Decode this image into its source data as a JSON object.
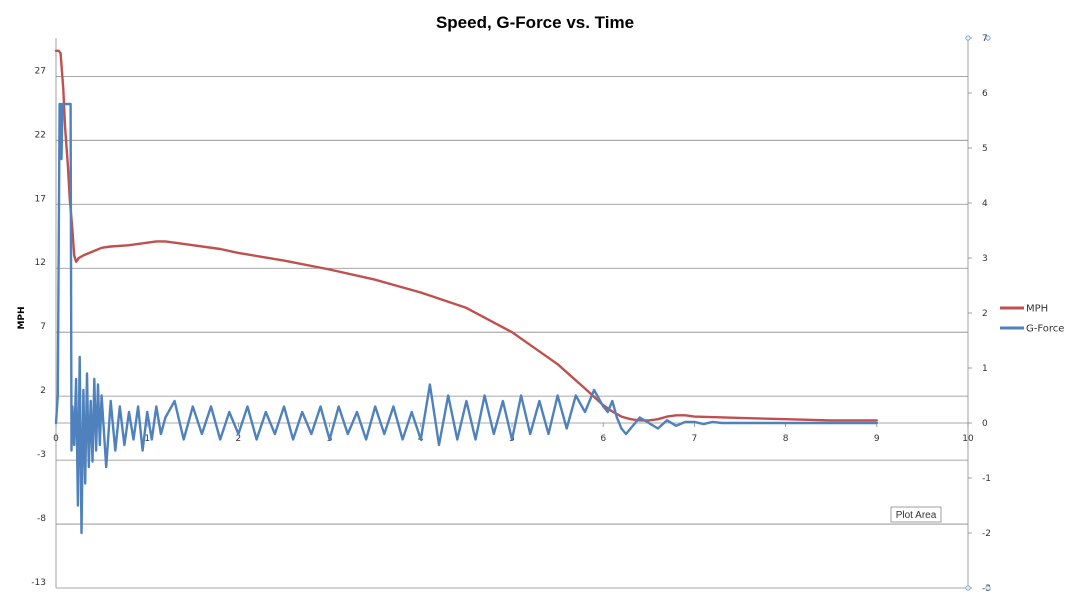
{
  "chart_data": {
    "type": "line",
    "title": "Speed, G-Force vs. Time",
    "xlabel": "",
    "ylabel": "MPH",
    "y2label": "",
    "xlim": [
      0,
      10
    ],
    "ylim": [
      -13,
      30
    ],
    "y2lim": [
      -3,
      7
    ],
    "x_ticks": [
      "0",
      "1",
      "2",
      "3",
      "4",
      "5",
      "6",
      "7",
      "8",
      "9",
      "10"
    ],
    "y_ticks": [
      "-13",
      "-8",
      "-3",
      "2",
      "7",
      "12",
      "17",
      "22",
      "27"
    ],
    "y2_ticks": [
      "-3",
      "-2",
      "-1",
      "0",
      "1",
      "2",
      "3",
      "4",
      "5",
      "6",
      "7"
    ],
    "grid": true,
    "legend_position": "right",
    "series": [
      {
        "name": "MPH",
        "color": "#c0504d",
        "axis": "left",
        "x": [
          0.0,
          0.03,
          0.05,
          0.08,
          0.1,
          0.13,
          0.15,
          0.18,
          0.2,
          0.22,
          0.25,
          0.3,
          0.4,
          0.5,
          0.6,
          0.8,
          1.0,
          1.1,
          1.2,
          1.3,
          1.5,
          1.8,
          2.0,
          2.5,
          3.0,
          3.5,
          4.0,
          4.5,
          5.0,
          5.5,
          5.8,
          6.0,
          6.1,
          6.2,
          6.3,
          6.4,
          6.5,
          6.6,
          6.7,
          6.8,
          6.9,
          7.0,
          7.5,
          8.0,
          8.5,
          9.0
        ],
        "y": [
          29.0,
          29.0,
          28.8,
          26.0,
          23.0,
          20.0,
          17.5,
          15.0,
          13.0,
          12.5,
          12.8,
          13.0,
          13.3,
          13.6,
          13.7,
          13.8,
          14.0,
          14.1,
          14.1,
          14.0,
          13.8,
          13.5,
          13.2,
          12.6,
          11.9,
          11.1,
          10.1,
          8.9,
          7.0,
          4.5,
          2.6,
          1.3,
          0.8,
          0.4,
          0.2,
          0.1,
          0.1,
          0.2,
          0.4,
          0.5,
          0.5,
          0.4,
          0.3,
          0.2,
          0.1,
          0.1
        ]
      },
      {
        "name": "G-Force",
        "color": "#4f81bd",
        "axis": "right",
        "x": [
          0.0,
          0.02,
          0.04,
          0.05,
          0.06,
          0.07,
          0.08,
          0.1,
          0.12,
          0.14,
          0.15,
          0.16,
          0.17,
          0.18,
          0.2,
          0.22,
          0.24,
          0.26,
          0.28,
          0.3,
          0.32,
          0.34,
          0.36,
          0.38,
          0.4,
          0.42,
          0.44,
          0.46,
          0.48,
          0.5,
          0.55,
          0.6,
          0.65,
          0.7,
          0.75,
          0.8,
          0.85,
          0.9,
          0.95,
          1.0,
          1.05,
          1.1,
          1.15,
          1.2,
          1.3,
          1.4,
          1.5,
          1.6,
          1.7,
          1.8,
          1.9,
          2.0,
          2.1,
          2.2,
          2.3,
          2.4,
          2.5,
          2.6,
          2.7,
          2.8,
          2.9,
          3.0,
          3.1,
          3.2,
          3.3,
          3.4,
          3.5,
          3.6,
          3.7,
          3.8,
          3.9,
          4.0,
          4.1,
          4.2,
          4.3,
          4.4,
          4.5,
          4.6,
          4.7,
          4.8,
          4.9,
          5.0,
          5.1,
          5.2,
          5.3,
          5.4,
          5.5,
          5.6,
          5.7,
          5.8,
          5.9,
          6.0,
          6.05,
          6.1,
          6.15,
          6.2,
          6.25,
          6.3,
          6.4,
          6.5,
          6.6,
          6.7,
          6.8,
          6.9,
          7.0,
          7.1,
          7.2,
          7.3,
          7.5,
          7.7,
          8.0,
          8.5,
          9.0
        ],
        "y": [
          0.0,
          0.5,
          5.8,
          5.8,
          4.8,
          5.8,
          5.8,
          5.8,
          5.8,
          5.8,
          5.8,
          5.8,
          -0.5,
          0.3,
          -0.4,
          0.8,
          -1.5,
          1.2,
          -2.0,
          0.6,
          -1.1,
          0.9,
          -0.8,
          0.4,
          -0.7,
          0.8,
          -0.5,
          0.7,
          -0.4,
          0.5,
          -0.8,
          0.4,
          -0.5,
          0.3,
          -0.4,
          0.2,
          -0.3,
          0.3,
          -0.5,
          0.2,
          -0.3,
          0.3,
          -0.2,
          0.1,
          0.4,
          -0.3,
          0.3,
          -0.2,
          0.3,
          -0.3,
          0.2,
          -0.2,
          0.3,
          -0.3,
          0.2,
          -0.2,
          0.3,
          -0.3,
          0.2,
          -0.2,
          0.3,
          -0.3,
          0.3,
          -0.2,
          0.2,
          -0.3,
          0.3,
          -0.2,
          0.3,
          -0.3,
          0.2,
          -0.3,
          0.7,
          -0.4,
          0.5,
          -0.3,
          0.4,
          -0.3,
          0.5,
          -0.2,
          0.4,
          -0.3,
          0.5,
          -0.2,
          0.4,
          -0.2,
          0.5,
          -0.1,
          0.5,
          0.2,
          0.6,
          0.3,
          0.2,
          0.4,
          0.1,
          -0.1,
          -0.2,
          -0.1,
          0.1,
          0.0,
          -0.1,
          0.05,
          -0.05,
          0.02,
          0.02,
          -0.02,
          0.02,
          0.0,
          0.0,
          0.0,
          0.0,
          0.0,
          0.0
        ]
      }
    ]
  },
  "tooltip": {
    "label": "Plot Area"
  }
}
